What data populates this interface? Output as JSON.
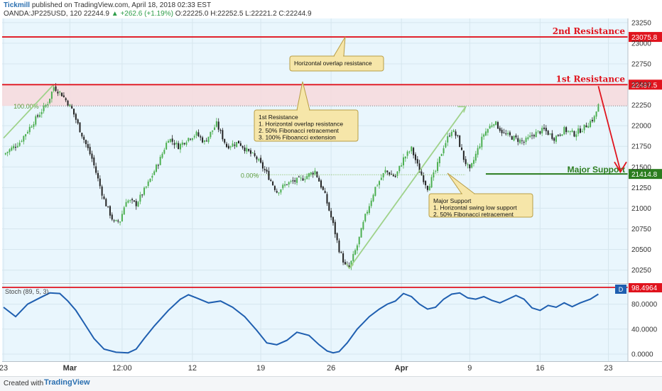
{
  "header": {
    "publisher": "Tickmill",
    "published_text": "published on TradingView.com, April 18, 2018 02:33 EST",
    "symbol": "OANDA:JP225USD, 120",
    "last": "22244.9",
    "change": "▲ +262.6 (+1.19%)",
    "ohlc": "O:22225.0  H:22252.5  L:22221.2  C:22244.9"
  },
  "footer": {
    "created_with": "Created with",
    "brand": "TradingView"
  },
  "colors": {
    "resistance": "#e0141e",
    "support": "#2b7d1f",
    "fib": "#7ab648",
    "stoch": "#1f5fb0",
    "bull": "#4caf50",
    "bear": "#222222",
    "note_bg": "#f6e6a9",
    "note_border": "#b89d45",
    "panel_bg": "#e9f6fd"
  },
  "chart_data": {
    "type": "candlestick",
    "price_axis": {
      "min": 20100,
      "max": 23300,
      "ticks": [
        20250,
        20500,
        20750,
        21000,
        21250,
        21500,
        21750,
        22000,
        22250,
        22500,
        22750,
        23000,
        23250
      ]
    },
    "time_axis": {
      "labels": [
        "23",
        "Mar",
        "12:00",
        "12",
        "19",
        "26",
        "Apr",
        "9",
        "16",
        "23"
      ],
      "label_index": [
        0,
        33,
        59,
        94,
        128,
        163,
        198,
        232,
        267,
        301
      ],
      "total_bars": 310
    },
    "close_path": [
      [
        0,
        21650
      ],
      [
        8,
        21800
      ],
      [
        15,
        22050
      ],
      [
        22,
        22280
      ],
      [
        25,
        22470
      ],
      [
        29,
        22380
      ],
      [
        34,
        22200
      ],
      [
        38,
        21950
      ],
      [
        44,
        21600
      ],
      [
        50,
        21100
      ],
      [
        55,
        20820
      ],
      [
        58,
        20850
      ],
      [
        61,
        21100
      ],
      [
        66,
        21050
      ],
      [
        72,
        21300
      ],
      [
        78,
        21600
      ],
      [
        82,
        21850
      ],
      [
        87,
        21750
      ],
      [
        92,
        21850
      ],
      [
        96,
        21900
      ],
      [
        100,
        21800
      ],
      [
        106,
        22020
      ],
      [
        111,
        21750
      ],
      [
        117,
        21800
      ],
      [
        121,
        21700
      ],
      [
        126,
        21600
      ],
      [
        131,
        21420
      ],
      [
        136,
        21200
      ],
      [
        141,
        21300
      ],
      [
        148,
        21350
      ],
      [
        155,
        21450
      ],
      [
        160,
        21150
      ],
      [
        164,
        20800
      ],
      [
        167,
        20500
      ],
      [
        170,
        20300
      ],
      [
        172,
        20280
      ],
      [
        176,
        20550
      ],
      [
        180,
        20900
      ],
      [
        185,
        21250
      ],
      [
        190,
        21450
      ],
      [
        195,
        21380
      ],
      [
        199,
        21600
      ],
      [
        203,
        21720
      ],
      [
        207,
        21450
      ],
      [
        211,
        21250
      ],
      [
        215,
        21450
      ],
      [
        219,
        21750
      ],
      [
        223,
        21950
      ],
      [
        226,
        21850
      ],
      [
        229,
        21600
      ],
      [
        232,
        21450
      ],
      [
        235,
        21650
      ],
      [
        239,
        21900
      ],
      [
        244,
        22050
      ],
      [
        249,
        21900
      ],
      [
        254,
        21850
      ],
      [
        259,
        21800
      ],
      [
        264,
        21900
      ],
      [
        269,
        21950
      ],
      [
        274,
        21850
      ],
      [
        279,
        21950
      ],
      [
        284,
        21900
      ],
      [
        289,
        21980
      ],
      [
        294,
        22100
      ],
      [
        296,
        22244.9
      ]
    ],
    "levels": [
      {
        "name": "2nd Resistance",
        "value": "23075.8",
        "price": 23075.8
      },
      {
        "name": "1st Resistance",
        "value": "22497.5",
        "price": 22497.5
      },
      {
        "name": "Major Support",
        "value": "21414.8",
        "price": 21414.8
      }
    ],
    "fib_labels": {
      "upper": "100.00%",
      "lower": "0.00%"
    },
    "fib_levels": {
      "upper": 22240,
      "lower": 21405
    },
    "notes": [
      {
        "id": "overlap",
        "lines": [
          "Horizontal overlap resistance"
        ]
      },
      {
        "id": "res1",
        "lines": [
          "1st Resistance",
          "1. Horizontal overlap resistance",
          "2. 50% Fibonacci retracement",
          "3. 100% Fiboancci extension"
        ]
      },
      {
        "id": "support",
        "lines": [
          "Major Support",
          "1. Horizontal swing low support",
          "2. 50% Fibonacci retracement"
        ]
      }
    ],
    "stochastic": {
      "label": "Stoch (89, 5, 3)",
      "marker": "D",
      "level_label": "98.4964",
      "level": 98.4964,
      "ticks": [
        {
          "v": 80,
          "label": "80.0000"
        },
        {
          "v": 40,
          "label": "40.0000"
        },
        {
          "v": 0,
          "label": "0.0000"
        }
      ],
      "path": [
        [
          0,
          75
        ],
        [
          6,
          60
        ],
        [
          12,
          80
        ],
        [
          18,
          90
        ],
        [
          23,
          98
        ],
        [
          28,
          97
        ],
        [
          32,
          85
        ],
        [
          36,
          70
        ],
        [
          40,
          50
        ],
        [
          45,
          25
        ],
        [
          50,
          8
        ],
        [
          56,
          3
        ],
        [
          62,
          2
        ],
        [
          66,
          8
        ],
        [
          70,
          25
        ],
        [
          75,
          45
        ],
        [
          82,
          70
        ],
        [
          88,
          88
        ],
        [
          92,
          95
        ],
        [
          96,
          90
        ],
        [
          102,
          82
        ],
        [
          108,
          85
        ],
        [
          114,
          75
        ],
        [
          120,
          60
        ],
        [
          126,
          38
        ],
        [
          131,
          18
        ],
        [
          136,
          15
        ],
        [
          141,
          22
        ],
        [
          146,
          35
        ],
        [
          152,
          30
        ],
        [
          157,
          15
        ],
        [
          161,
          5
        ],
        [
          164,
          2
        ],
        [
          167,
          4
        ],
        [
          171,
          18
        ],
        [
          176,
          40
        ],
        [
          182,
          60
        ],
        [
          187,
          72
        ],
        [
          191,
          80
        ],
        [
          195,
          85
        ],
        [
          199,
          97
        ],
        [
          203,
          92
        ],
        [
          207,
          80
        ],
        [
          211,
          72
        ],
        [
          215,
          75
        ],
        [
          219,
          88
        ],
        [
          223,
          96
        ],
        [
          227,
          98
        ],
        [
          231,
          90
        ],
        [
          235,
          88
        ],
        [
          239,
          92
        ],
        [
          243,
          86
        ],
        [
          247,
          82
        ],
        [
          251,
          88
        ],
        [
          255,
          94
        ],
        [
          259,
          88
        ],
        [
          263,
          74
        ],
        [
          267,
          70
        ],
        [
          271,
          78
        ],
        [
          275,
          75
        ],
        [
          279,
          82
        ],
        [
          283,
          76
        ],
        [
          287,
          82
        ],
        [
          292,
          88
        ],
        [
          296,
          96
        ]
      ]
    }
  }
}
